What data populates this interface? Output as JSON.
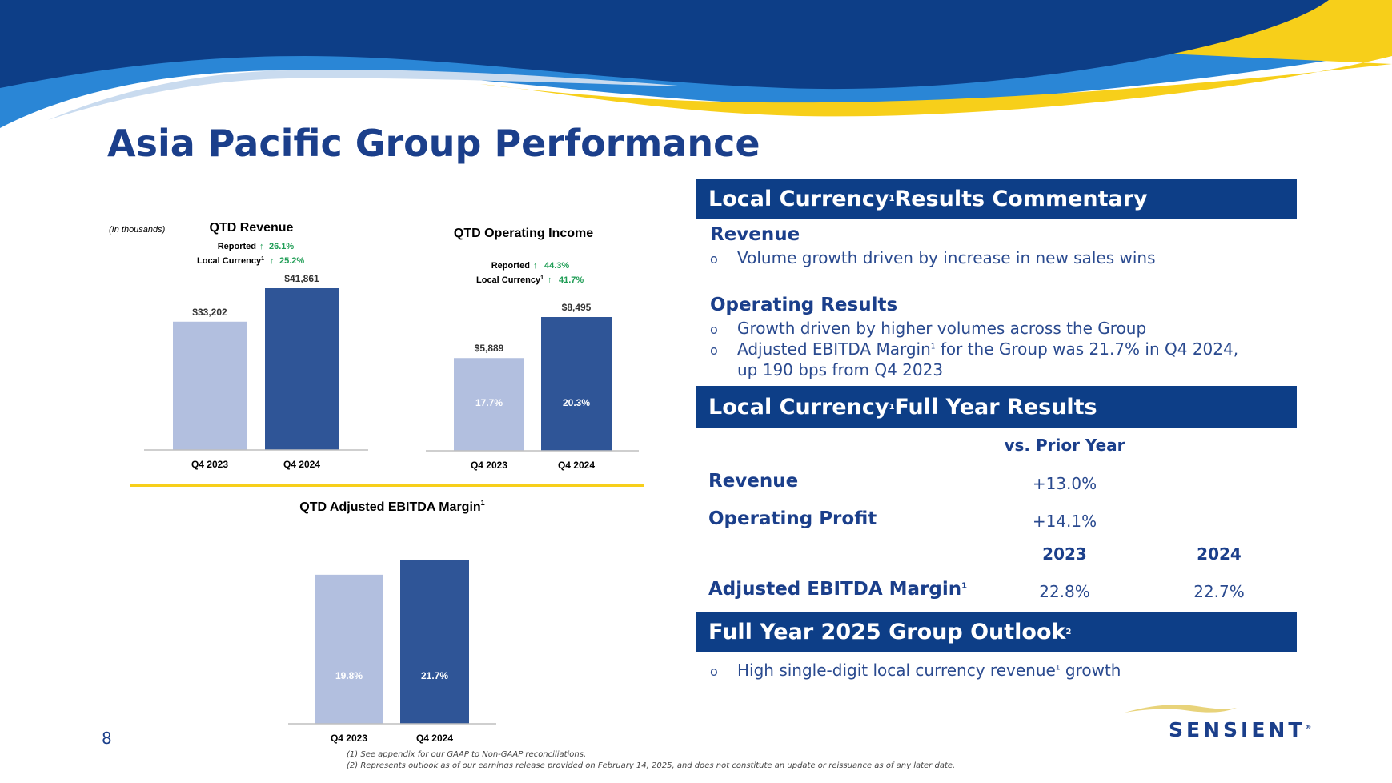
{
  "title": "Asia Pacific Group Performance",
  "page_number": "8",
  "colors": {
    "navy": "#0d3e87",
    "title_blue": "#1b3f8b",
    "bar_light": "#b2bfdf",
    "bar_dark": "#2f5597",
    "gold": "#f7cf1a",
    "green": "#1f9d55",
    "sky": "#2a86d6"
  },
  "units_note": "(In thousands)",
  "chart_data": [
    {
      "type": "bar",
      "id": "revenue",
      "title": "QTD Revenue",
      "categories": [
        "Q4 2023",
        "Q4 2024"
      ],
      "values": [
        33202,
        41861
      ],
      "value_labels": [
        "$33,202",
        "$41,861"
      ],
      "growth": [
        {
          "label": "Reported",
          "value": "26.1%"
        },
        {
          "label": "Local Currency",
          "sup": "1",
          "value": "25.2%"
        }
      ],
      "ylim": [
        0,
        41861
      ]
    },
    {
      "type": "bar",
      "id": "operating-income",
      "title": "QTD Operating Income",
      "categories": [
        "Q4 2023",
        "Q4 2024"
      ],
      "values": [
        5889,
        8495
      ],
      "value_labels": [
        "$5,889",
        "$8,495"
      ],
      "inner_labels": [
        "17.7%",
        "20.3%"
      ],
      "growth": [
        {
          "label": "Reported",
          "value": "44.3%"
        },
        {
          "label": "Local Currency",
          "sup": "1",
          "value": "41.7%"
        }
      ],
      "ylim": [
        0,
        8495
      ]
    },
    {
      "type": "bar",
      "id": "ebitda-margin",
      "title": "QTD Adjusted EBITDA Margin",
      "title_sup": "1",
      "categories": [
        "Q4 2023",
        "Q4 2024"
      ],
      "values": [
        19.8,
        21.7
      ],
      "inner_labels": [
        "19.8%",
        "21.7%"
      ],
      "ylim": [
        0,
        21.7
      ]
    }
  ],
  "commentary": {
    "header": "Local Currency",
    "header_sup": "1",
    "header_rest": " Results Commentary",
    "revenue_head": "Revenue",
    "revenue_bullet": "Volume growth driven by increase in new sales wins",
    "op_head": "Operating Results",
    "op_bullet1": "Growth driven by higher volumes across the Group",
    "op_bullet2a": "Adjusted EBITDA Margin",
    "op_bullet2_sup": "1",
    "op_bullet2b": " for the Group was 21.7% in Q4 2024,",
    "op_bullet2c": "up 190 bps from Q4 2023"
  },
  "full_year": {
    "header": "Local Currency",
    "header_sup": "1",
    "header_rest": " Full Year Results",
    "col_head": "vs. Prior Year",
    "rows": [
      {
        "label": "Revenue",
        "value": "+13.0%"
      },
      {
        "label": "Operating Profit",
        "value": "+14.1%"
      }
    ],
    "year_2023": "2023",
    "year_2024": "2024",
    "ebitda_label": "Adjusted EBITDA Margin",
    "ebitda_sup": "1",
    "ebitda_2023": "22.8%",
    "ebitda_2024": "22.7%"
  },
  "outlook": {
    "header": "Full Year 2025 Group Outlook",
    "header_sup": "2",
    "bullet_a": "High single-digit local currency revenue",
    "bullet_sup": "1",
    "bullet_b": " growth"
  },
  "bullet_glyph": "o",
  "footnotes": [
    "(1) See appendix for our GAAP to Non-GAAP reconciliations.",
    "(2) Represents outlook as of our earnings release provided on February 14, 2025, and does not constitute an update or reissuance as of any later date."
  ],
  "logo": {
    "text": "SENSIENT",
    "mark": "®"
  }
}
